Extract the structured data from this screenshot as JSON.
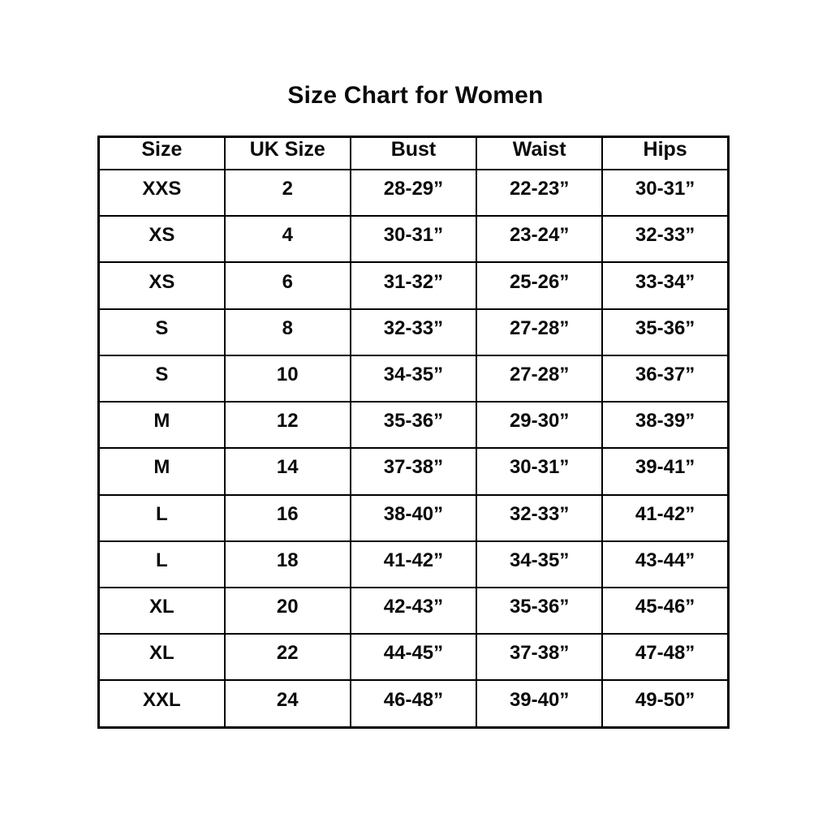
{
  "page": {
    "background": "#ffffff",
    "border_color": "#000000",
    "text_color": "#0a0a0a"
  },
  "title": "Size Chart for Women",
  "chart_data": {
    "type": "table",
    "title": "Size Chart for Women",
    "columns": [
      "Size",
      "UK Size",
      "Bust",
      "Waist",
      "Hips"
    ],
    "rows": [
      [
        "XXS",
        "2",
        "28-29”",
        "22-23”",
        "30-31”"
      ],
      [
        "XS",
        "4",
        "30-31”",
        "23-24”",
        "32-33”"
      ],
      [
        "XS",
        "6",
        "31-32”",
        "25-26”",
        "33-34”"
      ],
      [
        "S",
        "8",
        "32-33”",
        "27-28”",
        "35-36”"
      ],
      [
        "S",
        "10",
        "34-35”",
        "27-28”",
        "36-37”"
      ],
      [
        "M",
        "12",
        "35-36”",
        "29-30”",
        "38-39”"
      ],
      [
        "M",
        "14",
        "37-38”",
        "30-31”",
        "39-41”"
      ],
      [
        "L",
        "16",
        "38-40”",
        "32-33”",
        "41-42”"
      ],
      [
        "L",
        "18",
        "41-42”",
        "34-35”",
        "43-44”"
      ],
      [
        "XL",
        "20",
        "42-43”",
        "35-36”",
        "45-46”"
      ],
      [
        "XL",
        "22",
        "44-45”",
        "37-38”",
        "47-48”"
      ],
      [
        "XXL",
        "24",
        "46-48”",
        "39-40”",
        "49-50”"
      ]
    ],
    "layout": {
      "grid": true,
      "header_row": true,
      "cell_alignment": "center"
    }
  }
}
